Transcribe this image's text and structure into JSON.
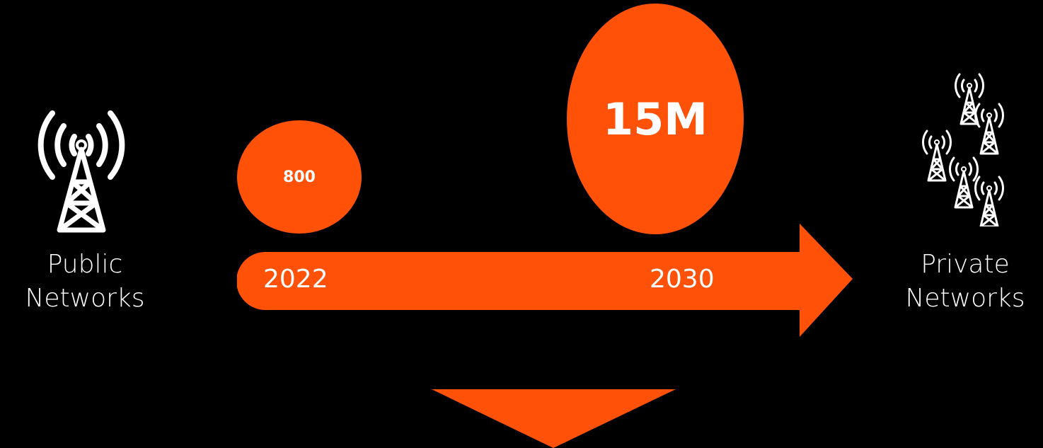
{
  "colors": {
    "background": "#000000",
    "accent": "#ff5208",
    "text": "#ffffff"
  },
  "left": {
    "icon": "single-cell-tower-icon",
    "line1": "Public",
    "line2": "Networks"
  },
  "right": {
    "icon": "multiple-cell-towers-icon",
    "line1": "Private",
    "line2": "Networks"
  },
  "timeline": {
    "start": {
      "year": "2022",
      "value": "800"
    },
    "end": {
      "year": "2030",
      "value": "15M"
    }
  }
}
